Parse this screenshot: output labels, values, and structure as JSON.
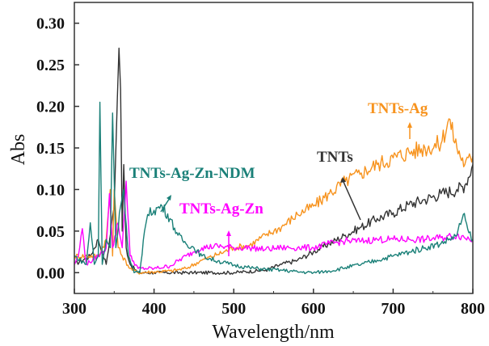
{
  "chart_data": {
    "type": "line",
    "title": "",
    "xlabel": "Wavelength/nm",
    "ylabel": "Abs",
    "xlim": [
      300,
      800
    ],
    "ylim": [
      -0.025,
      0.325
    ],
    "xticks": [
      "300",
      "400",
      "500",
      "600",
      "700",
      "800"
    ],
    "yticks": [
      "0.00",
      "0.05",
      "0.10",
      "0.15",
      "0.20",
      "0.25",
      "0.30"
    ],
    "grid": false,
    "legend": "none (inline labels with arrows)",
    "series": [
      {
        "name": "TNTs",
        "color": "#333333",
        "x": [
          300,
          320,
          330,
          340,
          350,
          354,
          356,
          358,
          360,
          362,
          365,
          370,
          380,
          400,
          450,
          500,
          540,
          560,
          580,
          600,
          620,
          640,
          660,
          680,
          700,
          720,
          740,
          760,
          780,
          790,
          800
        ],
        "y": [
          0.01,
          0.02,
          0.04,
          0.01,
          0.08,
          0.21,
          0.27,
          0.22,
          0.05,
          0.13,
          0.03,
          0.01,
          0.0,
          0.0,
          0.0,
          0.0,
          0.003,
          0.01,
          0.015,
          0.025,
          0.035,
          0.045,
          0.055,
          0.065,
          0.072,
          0.082,
          0.088,
          0.095,
          0.1,
          0.105,
          0.13
        ]
      },
      {
        "name": "TNTs-Ag",
        "color": "#f7931e",
        "x": [
          300,
          330,
          340,
          345,
          348,
          350,
          355,
          360,
          370,
          380,
          420,
          440,
          460,
          480,
          500,
          520,
          540,
          560,
          580,
          600,
          620,
          640,
          660,
          680,
          700,
          720,
          740,
          760,
          770,
          780,
          790,
          800
        ],
        "y": [
          0.02,
          0.02,
          0.04,
          0.1,
          0.02,
          0.1,
          0.03,
          0.02,
          0.005,
          0.0,
          0.002,
          0.005,
          0.015,
          0.022,
          0.03,
          0.033,
          0.045,
          0.055,
          0.07,
          0.08,
          0.095,
          0.11,
          0.12,
          0.13,
          0.138,
          0.145,
          0.15,
          0.155,
          0.185,
          0.15,
          0.13,
          0.14
        ]
      },
      {
        "name": "TNTs-Ag-Zn",
        "color": "#ff00ff",
        "x": [
          300,
          305,
          310,
          315,
          330,
          340,
          344,
          348,
          355,
          360,
          365,
          370,
          380,
          400,
          420,
          440,
          450,
          460,
          480,
          500,
          520,
          540,
          560,
          580,
          600,
          620,
          640,
          660,
          680,
          700,
          720,
          740,
          760,
          780,
          800
        ],
        "y": [
          0.01,
          0.02,
          0.053,
          0.01,
          0.02,
          0.03,
          0.095,
          0.03,
          0.06,
          0.03,
          0.11,
          0.02,
          0.005,
          0.005,
          0.008,
          0.02,
          0.025,
          0.03,
          0.032,
          0.03,
          0.03,
          0.028,
          0.03,
          0.03,
          0.03,
          0.035,
          0.038,
          0.038,
          0.04,
          0.04,
          0.04,
          0.04,
          0.042,
          0.045,
          0.04
        ]
      },
      {
        "name": "TNTs-Ag-Zn-NDM",
        "color": "#1a8078",
        "x": [
          300,
          315,
          320,
          325,
          330,
          332,
          335,
          340,
          345,
          348,
          352,
          358,
          362,
          368,
          375,
          382,
          388,
          392,
          400,
          410,
          420,
          430,
          440,
          450,
          460,
          480,
          500,
          520,
          540,
          560,
          580,
          600,
          620,
          640,
          660,
          680,
          700,
          720,
          740,
          760,
          780,
          788,
          795,
          800
        ],
        "y": [
          0.02,
          0.01,
          0.06,
          0.01,
          0.02,
          0.205,
          0.01,
          0.04,
          0.03,
          0.192,
          0.03,
          0.08,
          0.1,
          0.02,
          0.0,
          0.0,
          0.05,
          0.07,
          0.075,
          0.08,
          0.065,
          0.045,
          0.035,
          0.03,
          0.02,
          0.014,
          0.009,
          0.006,
          0.004,
          0.003,
          0.001,
          0.0,
          0.002,
          0.006,
          0.01,
          0.015,
          0.02,
          0.025,
          0.03,
          0.035,
          0.045,
          0.07,
          0.048,
          0.04
        ]
      }
    ],
    "annotations": [
      {
        "text": "TNTs-Ag",
        "color": "#f7931e"
      },
      {
        "text": "TNTs",
        "color": "#333333"
      },
      {
        "text": "TNTs-Ag-Zn-NDM",
        "color": "#1a8078"
      },
      {
        "text": "TNTs-Ag-Zn",
        "color": "#ff00ff"
      }
    ]
  }
}
